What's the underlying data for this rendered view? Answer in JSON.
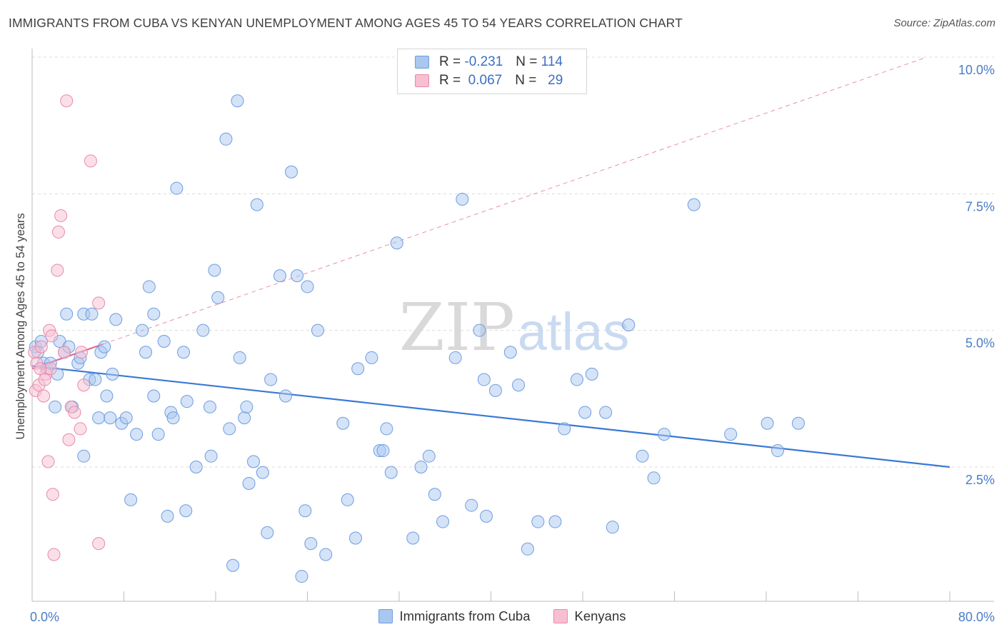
{
  "title": "IMMIGRANTS FROM CUBA VS KENYAN UNEMPLOYMENT AMONG AGES 45 TO 54 YEARS CORRELATION CHART",
  "source": "Source: ZipAtlas.com",
  "watermark": {
    "zip": "ZIP",
    "atlas": "atlas"
  },
  "legend": {
    "r_label": "R =",
    "n_label": "N =",
    "rows": [
      {
        "r": "-0.231",
        "n": "114",
        "color": "#a9c7ef",
        "border": "#6e9de0"
      },
      {
        "r": "0.067",
        "n": "29",
        "color": "#f7bfd1",
        "border": "#e88aa9"
      }
    ]
  },
  "chart_data": {
    "type": "scatter",
    "ylabel": "Unemployment Among Ages 45 to 54 years",
    "xlim": [
      0,
      80
    ],
    "ylim": [
      0,
      10.5
    ],
    "x_tick_labels": [
      "0.0%",
      "80.0%"
    ],
    "y_ticks": [
      2.5,
      5.0,
      7.5,
      10.0
    ],
    "y_tick_labels": [
      "2.5%",
      "5.0%",
      "7.5%",
      "10.0%"
    ],
    "grid": "horizontal dashed",
    "series": [
      {
        "name": "Immigrants from Cuba",
        "color": "#a9c7ef",
        "stroke": "#6e9de0",
        "trend": {
          "x": [
            0,
            80
          ],
          "y": [
            4.35,
            2.5
          ],
          "style": "solid",
          "color": "#3a78d6"
        },
        "points": [
          [
            0.3,
            4.7
          ],
          [
            0.5,
            4.6
          ],
          [
            0.8,
            4.8
          ],
          [
            1.0,
            4.4
          ],
          [
            1.3,
            4.3
          ],
          [
            1.6,
            4.4
          ],
          [
            2.0,
            3.6
          ],
          [
            2.2,
            4.2
          ],
          [
            2.4,
            4.8
          ],
          [
            2.8,
            4.6
          ],
          [
            3.0,
            5.3
          ],
          [
            3.2,
            4.7
          ],
          [
            3.5,
            3.6
          ],
          [
            4.0,
            4.4
          ],
          [
            4.2,
            4.5
          ],
          [
            4.5,
            2.7
          ],
          [
            4.5,
            5.3
          ],
          [
            5.0,
            4.1
          ],
          [
            5.2,
            5.3
          ],
          [
            5.5,
            4.1
          ],
          [
            5.8,
            3.4
          ],
          [
            6.0,
            4.6
          ],
          [
            6.3,
            4.7
          ],
          [
            6.5,
            3.8
          ],
          [
            6.8,
            3.4
          ],
          [
            7.0,
            4.2
          ],
          [
            7.3,
            5.2
          ],
          [
            7.8,
            3.3
          ],
          [
            8.2,
            3.4
          ],
          [
            8.6,
            1.9
          ],
          [
            9.1,
            3.1
          ],
          [
            9.6,
            5.0
          ],
          [
            9.9,
            4.6
          ],
          [
            10.2,
            5.8
          ],
          [
            10.6,
            3.8
          ],
          [
            10.6,
            5.3
          ],
          [
            11.0,
            3.1
          ],
          [
            11.5,
            4.8
          ],
          [
            11.8,
            1.6
          ],
          [
            12.1,
            3.5
          ],
          [
            12.3,
            3.4
          ],
          [
            12.6,
            7.6
          ],
          [
            13.2,
            4.6
          ],
          [
            13.4,
            1.7
          ],
          [
            13.5,
            3.7
          ],
          [
            14.3,
            2.5
          ],
          [
            14.9,
            5.0
          ],
          [
            15.5,
            3.6
          ],
          [
            15.6,
            2.7
          ],
          [
            15.9,
            6.1
          ],
          [
            16.2,
            5.6
          ],
          [
            16.9,
            8.5
          ],
          [
            17.2,
            3.2
          ],
          [
            17.5,
            0.7
          ],
          [
            17.9,
            9.2
          ],
          [
            18.1,
            4.5
          ],
          [
            18.5,
            3.4
          ],
          [
            18.7,
            3.6
          ],
          [
            18.9,
            2.2
          ],
          [
            19.3,
            2.6
          ],
          [
            19.6,
            7.3
          ],
          [
            20.1,
            2.4
          ],
          [
            20.5,
            1.3
          ],
          [
            20.8,
            4.1
          ],
          [
            21.6,
            6.0
          ],
          [
            22.1,
            3.8
          ],
          [
            22.6,
            7.9
          ],
          [
            23.1,
            6.0
          ],
          [
            23.5,
            0.5
          ],
          [
            23.8,
            1.7
          ],
          [
            24.0,
            5.8
          ],
          [
            24.3,
            1.1
          ],
          [
            24.9,
            5.0
          ],
          [
            25.6,
            0.9
          ],
          [
            27.1,
            3.3
          ],
          [
            27.5,
            1.9
          ],
          [
            28.2,
            1.2
          ],
          [
            28.4,
            4.3
          ],
          [
            29.6,
            4.5
          ],
          [
            30.3,
            2.8
          ],
          [
            30.6,
            2.8
          ],
          [
            30.9,
            3.2
          ],
          [
            31.3,
            2.4
          ],
          [
            31.8,
            6.6
          ],
          [
            33.2,
            1.2
          ],
          [
            33.9,
            2.5
          ],
          [
            34.6,
            2.7
          ],
          [
            35.1,
            2.0
          ],
          [
            35.8,
            1.5
          ],
          [
            36.9,
            4.5
          ],
          [
            37.5,
            7.4
          ],
          [
            38.3,
            1.8
          ],
          [
            39.0,
            5.0
          ],
          [
            39.4,
            4.1
          ],
          [
            39.6,
            1.6
          ],
          [
            40.4,
            3.9
          ],
          [
            41.7,
            4.6
          ],
          [
            42.4,
            4.0
          ],
          [
            43.2,
            1.0
          ],
          [
            44.1,
            1.5
          ],
          [
            45.6,
            1.5
          ],
          [
            46.4,
            3.2
          ],
          [
            47.5,
            4.1
          ],
          [
            48.2,
            3.5
          ],
          [
            48.8,
            4.2
          ],
          [
            50.0,
            3.5
          ],
          [
            50.6,
            1.4
          ],
          [
            52.0,
            5.1
          ],
          [
            53.2,
            2.7
          ],
          [
            54.2,
            2.3
          ],
          [
            55.1,
            3.1
          ],
          [
            57.7,
            7.3
          ],
          [
            60.9,
            3.1
          ],
          [
            64.1,
            3.3
          ],
          [
            65.0,
            2.8
          ],
          [
            66.8,
            3.3
          ]
        ]
      },
      {
        "name": "Kenyans",
        "color": "#f7bfd1",
        "stroke": "#e88aa9",
        "trend": {
          "x": [
            0,
            6.2,
            78
          ],
          "y": [
            4.3,
            4.75,
            10.0
          ],
          "style": "solid-then-dashed",
          "color": "#e06a93"
        },
        "points": [
          [
            0.2,
            4.6
          ],
          [
            0.3,
            3.9
          ],
          [
            0.4,
            4.4
          ],
          [
            0.6,
            4.0
          ],
          [
            0.8,
            4.7
          ],
          [
            1.0,
            3.8
          ],
          [
            1.2,
            4.2
          ],
          [
            1.4,
            2.6
          ],
          [
            1.5,
            5.0
          ],
          [
            1.6,
            4.3
          ],
          [
            1.7,
            4.9
          ],
          [
            1.8,
            2.0
          ],
          [
            1.9,
            0.9
          ],
          [
            2.2,
            6.1
          ],
          [
            2.3,
            6.8
          ],
          [
            2.5,
            7.1
          ],
          [
            2.8,
            4.6
          ],
          [
            3.0,
            9.2
          ],
          [
            3.2,
            3.0
          ],
          [
            3.4,
            3.6
          ],
          [
            3.7,
            3.5
          ],
          [
            4.2,
            3.2
          ],
          [
            4.3,
            4.6
          ],
          [
            4.5,
            4.0
          ],
          [
            5.1,
            8.1
          ],
          [
            5.8,
            5.5
          ],
          [
            5.8,
            1.1
          ],
          [
            0.7,
            4.3
          ],
          [
            1.1,
            4.1
          ]
        ]
      }
    ]
  }
}
